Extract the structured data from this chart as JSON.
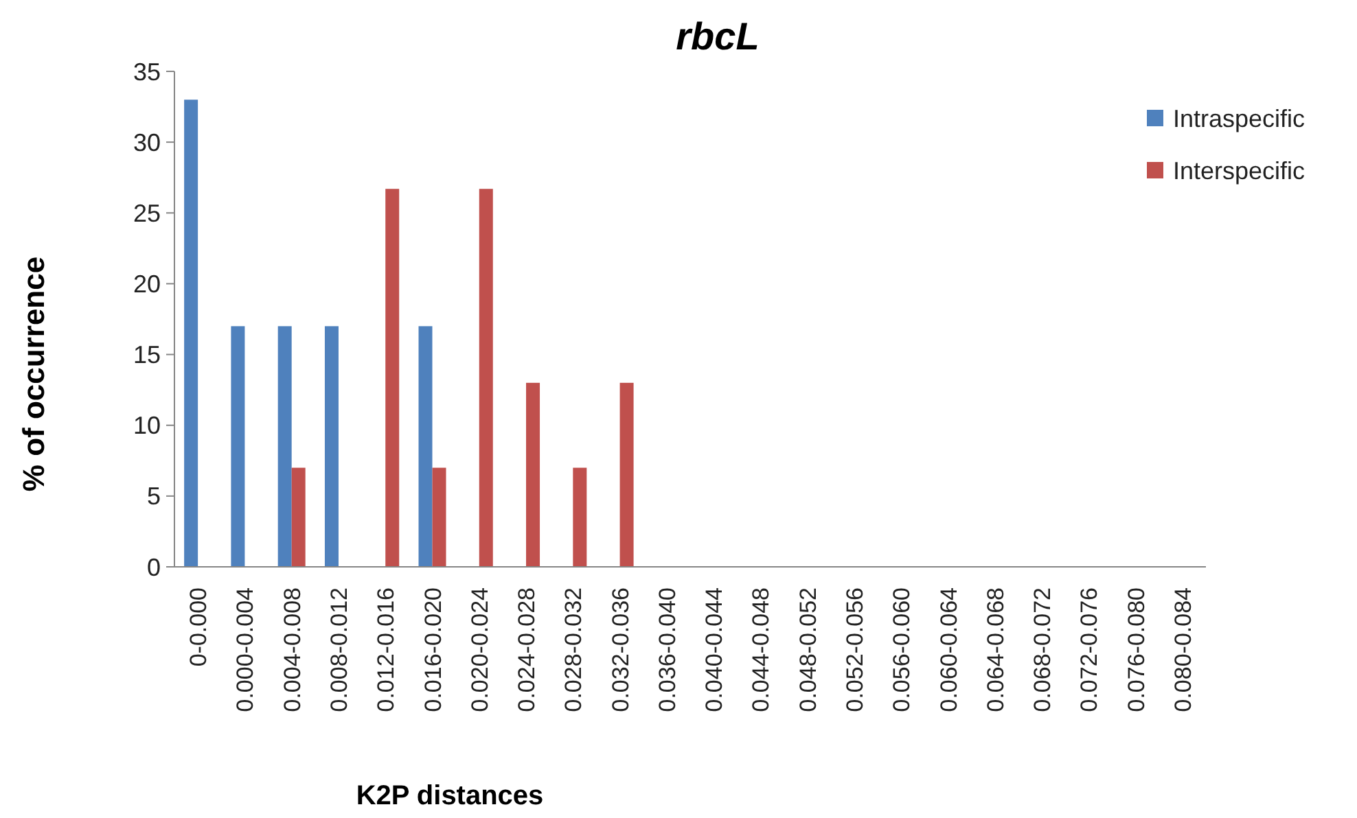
{
  "chart_data": {
    "type": "bar",
    "title": "rbcL",
    "xlabel": "K2P distances",
    "ylabel": "% of occurrence",
    "categories": [
      "0-0.000",
      "0.000-0.004",
      "0.004-0.008",
      "0.008-0.012",
      "0.012-0.016",
      "0.016-0.020",
      "0.020-0.024",
      "0.024-0.028",
      "0.028-0.032",
      "0.032-0.036",
      "0.036-0.040",
      "0.040-0.044",
      "0.044-0.048",
      "0.048-0.052",
      "0.052-0.056",
      "0.056-0.060",
      "0.060-0.064",
      "0.064-0.068",
      "0.068-0.072",
      "0.072-0.076",
      "0.076-0.080",
      "0.080-0.084"
    ],
    "series": [
      {
        "name": "Intraspecific",
        "color": "#4f81bd",
        "values": [
          33,
          17,
          17,
          17,
          0,
          17,
          0,
          0,
          0,
          0,
          0,
          0,
          0,
          0,
          0,
          0,
          0,
          0,
          0,
          0,
          0,
          0
        ]
      },
      {
        "name": "Interspecific",
        "color": "#c0504d",
        "values": [
          0,
          0,
          7,
          0,
          26.7,
          7,
          26.7,
          13,
          7,
          13,
          0,
          0,
          0,
          0,
          0,
          0,
          0,
          0,
          0,
          0,
          0,
          0
        ]
      }
    ],
    "ylim": [
      0,
      35
    ],
    "yticks": [
      0,
      5,
      10,
      15,
      20,
      25,
      30,
      35
    ],
    "grid": false,
    "legend": "top right"
  }
}
